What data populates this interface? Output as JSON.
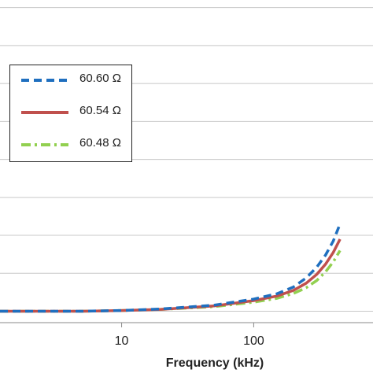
{
  "chart_data": {
    "type": "line",
    "title": "",
    "xlabel": "Frequency (kHz)",
    "ylabel": "",
    "x_scale": "log",
    "x_range": [
      1.2,
      800
    ],
    "y_range": [
      -0.3,
      8.2
    ],
    "x_ticks": [
      {
        "value": 10,
        "label": "10"
      },
      {
        "value": 100,
        "label": "100"
      }
    ],
    "y_gridlines": [
      0,
      1,
      2,
      3,
      4,
      5,
      6,
      7,
      8
    ],
    "grid": true,
    "legend_position": "upper-left",
    "x": [
      1,
      2,
      5,
      10,
      20,
      50,
      100,
      150,
      200,
      250,
      300,
      350,
      400,
      450
    ],
    "series": [
      {
        "name": "60.60 Ω",
        "color": "#1f6fbf",
        "dash": "dashed",
        "values": [
          0.0,
          0.0,
          0.0,
          0.02,
          0.06,
          0.16,
          0.32,
          0.46,
          0.64,
          0.88,
          1.16,
          1.48,
          1.85,
          2.3
        ]
      },
      {
        "name": "60.54 Ω",
        "color": "#c0504d",
        "dash": "solid",
        "values": [
          0.0,
          0.0,
          0.0,
          0.02,
          0.05,
          0.14,
          0.28,
          0.4,
          0.55,
          0.74,
          0.97,
          1.24,
          1.55,
          1.9
        ]
      },
      {
        "name": "60.48 Ω",
        "color": "#92d050",
        "dash": "dashdot",
        "values": [
          0.0,
          0.0,
          0.0,
          0.02,
          0.05,
          0.12,
          0.24,
          0.34,
          0.47,
          0.62,
          0.81,
          1.04,
          1.3,
          1.6
        ]
      }
    ]
  }
}
